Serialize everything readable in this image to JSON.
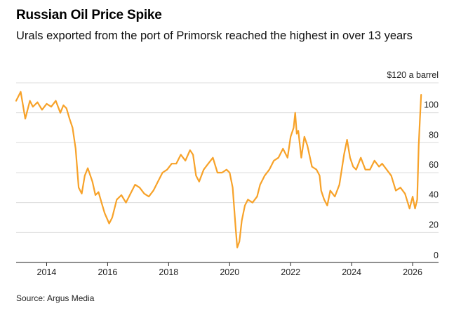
{
  "header": {
    "title": "Russian Oil Price Spike",
    "subtitle": "Urals exported from the port of Primorsk reached the highest in over 13 years"
  },
  "footer": {
    "source": "Source: Argus Media"
  },
  "colors": {
    "line": "#f7a229",
    "grid": "#dcdcdc",
    "axis": "#222222"
  },
  "chart_data": {
    "type": "line",
    "title": "Russian Oil Price Spike",
    "ylabel": "$120 a barrel",
    "xlabel": "",
    "ylim": [
      0,
      120
    ],
    "xlim": [
      2013.0,
      2026.85
    ],
    "y_ticks": [
      {
        "value": 120,
        "label": "$120 a barrel"
      },
      {
        "value": 100,
        "label": "100"
      },
      {
        "value": 80,
        "label": "80"
      },
      {
        "value": 60,
        "label": "60"
      },
      {
        "value": 40,
        "label": "40"
      },
      {
        "value": 20,
        "label": "20"
      },
      {
        "value": 0,
        "label": "0"
      }
    ],
    "x_ticks": [
      {
        "value": 2014,
        "label": "2014"
      },
      {
        "value": 2016,
        "label": "2016"
      },
      {
        "value": 2018,
        "label": "2018"
      },
      {
        "value": 2020,
        "label": "2020"
      },
      {
        "value": 2022,
        "label": "2022"
      },
      {
        "value": 2024,
        "label": "2024"
      },
      {
        "value": 2026,
        "label": "2026"
      }
    ],
    "grid": true,
    "series": [
      {
        "name": "Urals (Primorsk)",
        "x": [
          2013.0,
          2013.15,
          2013.3,
          2013.45,
          2013.55,
          2013.7,
          2013.85,
          2014.0,
          2014.15,
          2014.3,
          2014.45,
          2014.55,
          2014.65,
          2014.75,
          2014.85,
          2014.95,
          2015.05,
          2015.15,
          2015.25,
          2015.35,
          2015.5,
          2015.6,
          2015.7,
          2015.8,
          2015.9,
          2016.05,
          2016.15,
          2016.3,
          2016.45,
          2016.6,
          2016.75,
          2016.9,
          2017.05,
          2017.2,
          2017.35,
          2017.5,
          2017.65,
          2017.8,
          2017.95,
          2018.1,
          2018.25,
          2018.4,
          2018.55,
          2018.7,
          2018.8,
          2018.9,
          2019.0,
          2019.15,
          2019.3,
          2019.45,
          2019.6,
          2019.75,
          2019.9,
          2020.0,
          2020.1,
          2020.2,
          2020.25,
          2020.32,
          2020.4,
          2020.5,
          2020.6,
          2020.75,
          2020.9,
          2021.0,
          2021.15,
          2021.3,
          2021.45,
          2021.6,
          2021.75,
          2021.9,
          2022.0,
          2022.1,
          2022.15,
          2022.2,
          2022.25,
          2022.35,
          2022.45,
          2022.55,
          2022.7,
          2022.85,
          2022.95,
          2023.0,
          2023.1,
          2023.2,
          2023.3,
          2023.45,
          2023.6,
          2023.75,
          2023.85,
          2023.95,
          2024.05,
          2024.15,
          2024.3,
          2024.45,
          2024.6,
          2024.75,
          2024.9,
          2025.0,
          2025.15,
          2025.3,
          2025.45,
          2025.6,
          2025.75,
          2025.9,
          2026.0,
          2026.08,
          2026.15,
          2026.2,
          2026.24,
          2026.28
        ],
        "values": [
          108,
          114,
          96,
          108,
          104,
          107,
          102,
          106,
          104,
          108,
          100,
          105,
          103,
          96,
          90,
          76,
          50,
          46,
          58,
          63,
          54,
          45,
          47,
          40,
          33,
          26,
          30,
          42,
          45,
          40,
          46,
          52,
          50,
          46,
          44,
          48,
          54,
          60,
          62,
          66,
          66,
          72,
          68,
          75,
          72,
          58,
          54,
          62,
          66,
          70,
          60,
          60,
          62,
          60,
          50,
          22,
          10,
          14,
          28,
          38,
          42,
          40,
          44,
          52,
          58,
          62,
          68,
          70,
          76,
          70,
          84,
          90,
          100,
          86,
          88,
          70,
          84,
          78,
          64,
          62,
          58,
          48,
          42,
          38,
          48,
          44,
          52,
          72,
          82,
          70,
          64,
          62,
          70,
          62,
          62,
          68,
          64,
          66,
          62,
          58,
          48,
          50,
          46,
          36,
          44,
          36,
          42,
          78,
          96,
          112
        ]
      }
    ]
  }
}
